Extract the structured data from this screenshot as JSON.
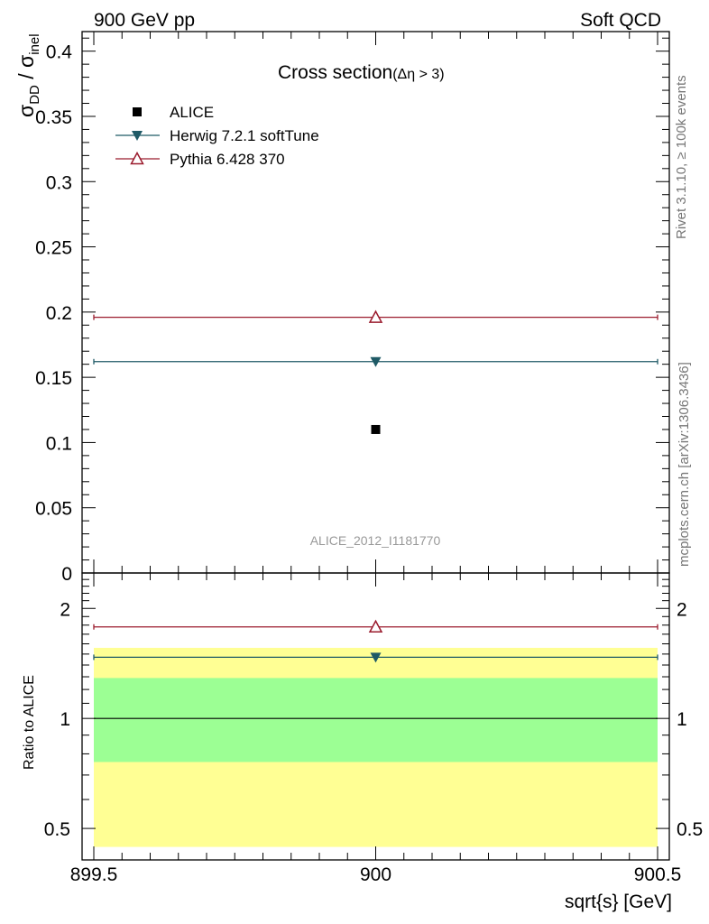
{
  "header": {
    "left": "900 GeV pp",
    "right": "Soft QCD"
  },
  "side_labels": {
    "rivet": "Rivet 3.1.10, ≥ 100k events",
    "mcplots": "mcplots.cern.ch [arXiv:1306.3436]"
  },
  "main_plot": {
    "title_main": "Cross section",
    "title_sub": "(Δη > 3)",
    "ylabel_sigma1": "σ",
    "ylabel_sub1": "DD",
    "ylabel_slash": " / ",
    "ylabel_sigma2": "σ",
    "ylabel_sub2": "inel",
    "watermark": "ALICE_2012_I1181770",
    "ylim": [
      0,
      0.415
    ],
    "yticks": [
      0.05,
      0.1,
      0.15,
      0.2,
      0.25,
      0.3,
      0.35,
      0.4
    ],
    "ytick_labels": [
      "0.05",
      "0.1",
      "0.15",
      "0.2",
      "0.25",
      "0.3",
      "0.35",
      "0.4"
    ],
    "ytick_zero_label": "0"
  },
  "ratio_plot": {
    "ylabel": "Ratio to ALICE",
    "ylim": [
      0.41,
      2.5
    ],
    "ytick_labels": [
      "0.5",
      "1",
      "2"
    ]
  },
  "legend": {
    "position": "top-left",
    "entries": [
      {
        "label": "ALICE",
        "marker": "filled-square",
        "color": "#000000"
      },
      {
        "label": "Herwig 7.2.1 softTune",
        "marker": "filled-triangle-down",
        "color": "#1f5a66"
      },
      {
        "label": "Pythia 6.428 370",
        "marker": "open-triangle-up",
        "color": "#9b1c2e"
      }
    ]
  },
  "chart_data": {
    "type": "scatter",
    "xlabel": "sqrt{s} [GeV]",
    "xlim": [
      899.5,
      900.5
    ],
    "xticks": [
      899.5,
      900,
      900.5
    ],
    "xtick_labels": [
      "899.5",
      "900",
      "900.5"
    ],
    "series": [
      {
        "name": "ALICE",
        "x": [
          900
        ],
        "y": [
          0.11
        ],
        "color": "#000000",
        "ratio": [
          1.0
        ]
      },
      {
        "name": "Herwig 7.2.1 softTune",
        "x": [
          900
        ],
        "y": [
          0.162
        ],
        "xerr": [
          0.5
        ],
        "color": "#1f5a66",
        "ratio": [
          1.47
        ]
      },
      {
        "name": "Pythia 6.428 370",
        "x": [
          900
        ],
        "y": [
          0.196
        ],
        "xerr": [
          0.5
        ],
        "color": "#9b1c2e",
        "ratio": [
          1.78
        ]
      }
    ],
    "ratio_bands": [
      {
        "name": "inner",
        "color": "#9cff94",
        "lo": 0.76,
        "hi": 1.29
      },
      {
        "name": "outer",
        "color": "#ffff94",
        "lo": 0.445,
        "hi": 1.56
      }
    ]
  }
}
